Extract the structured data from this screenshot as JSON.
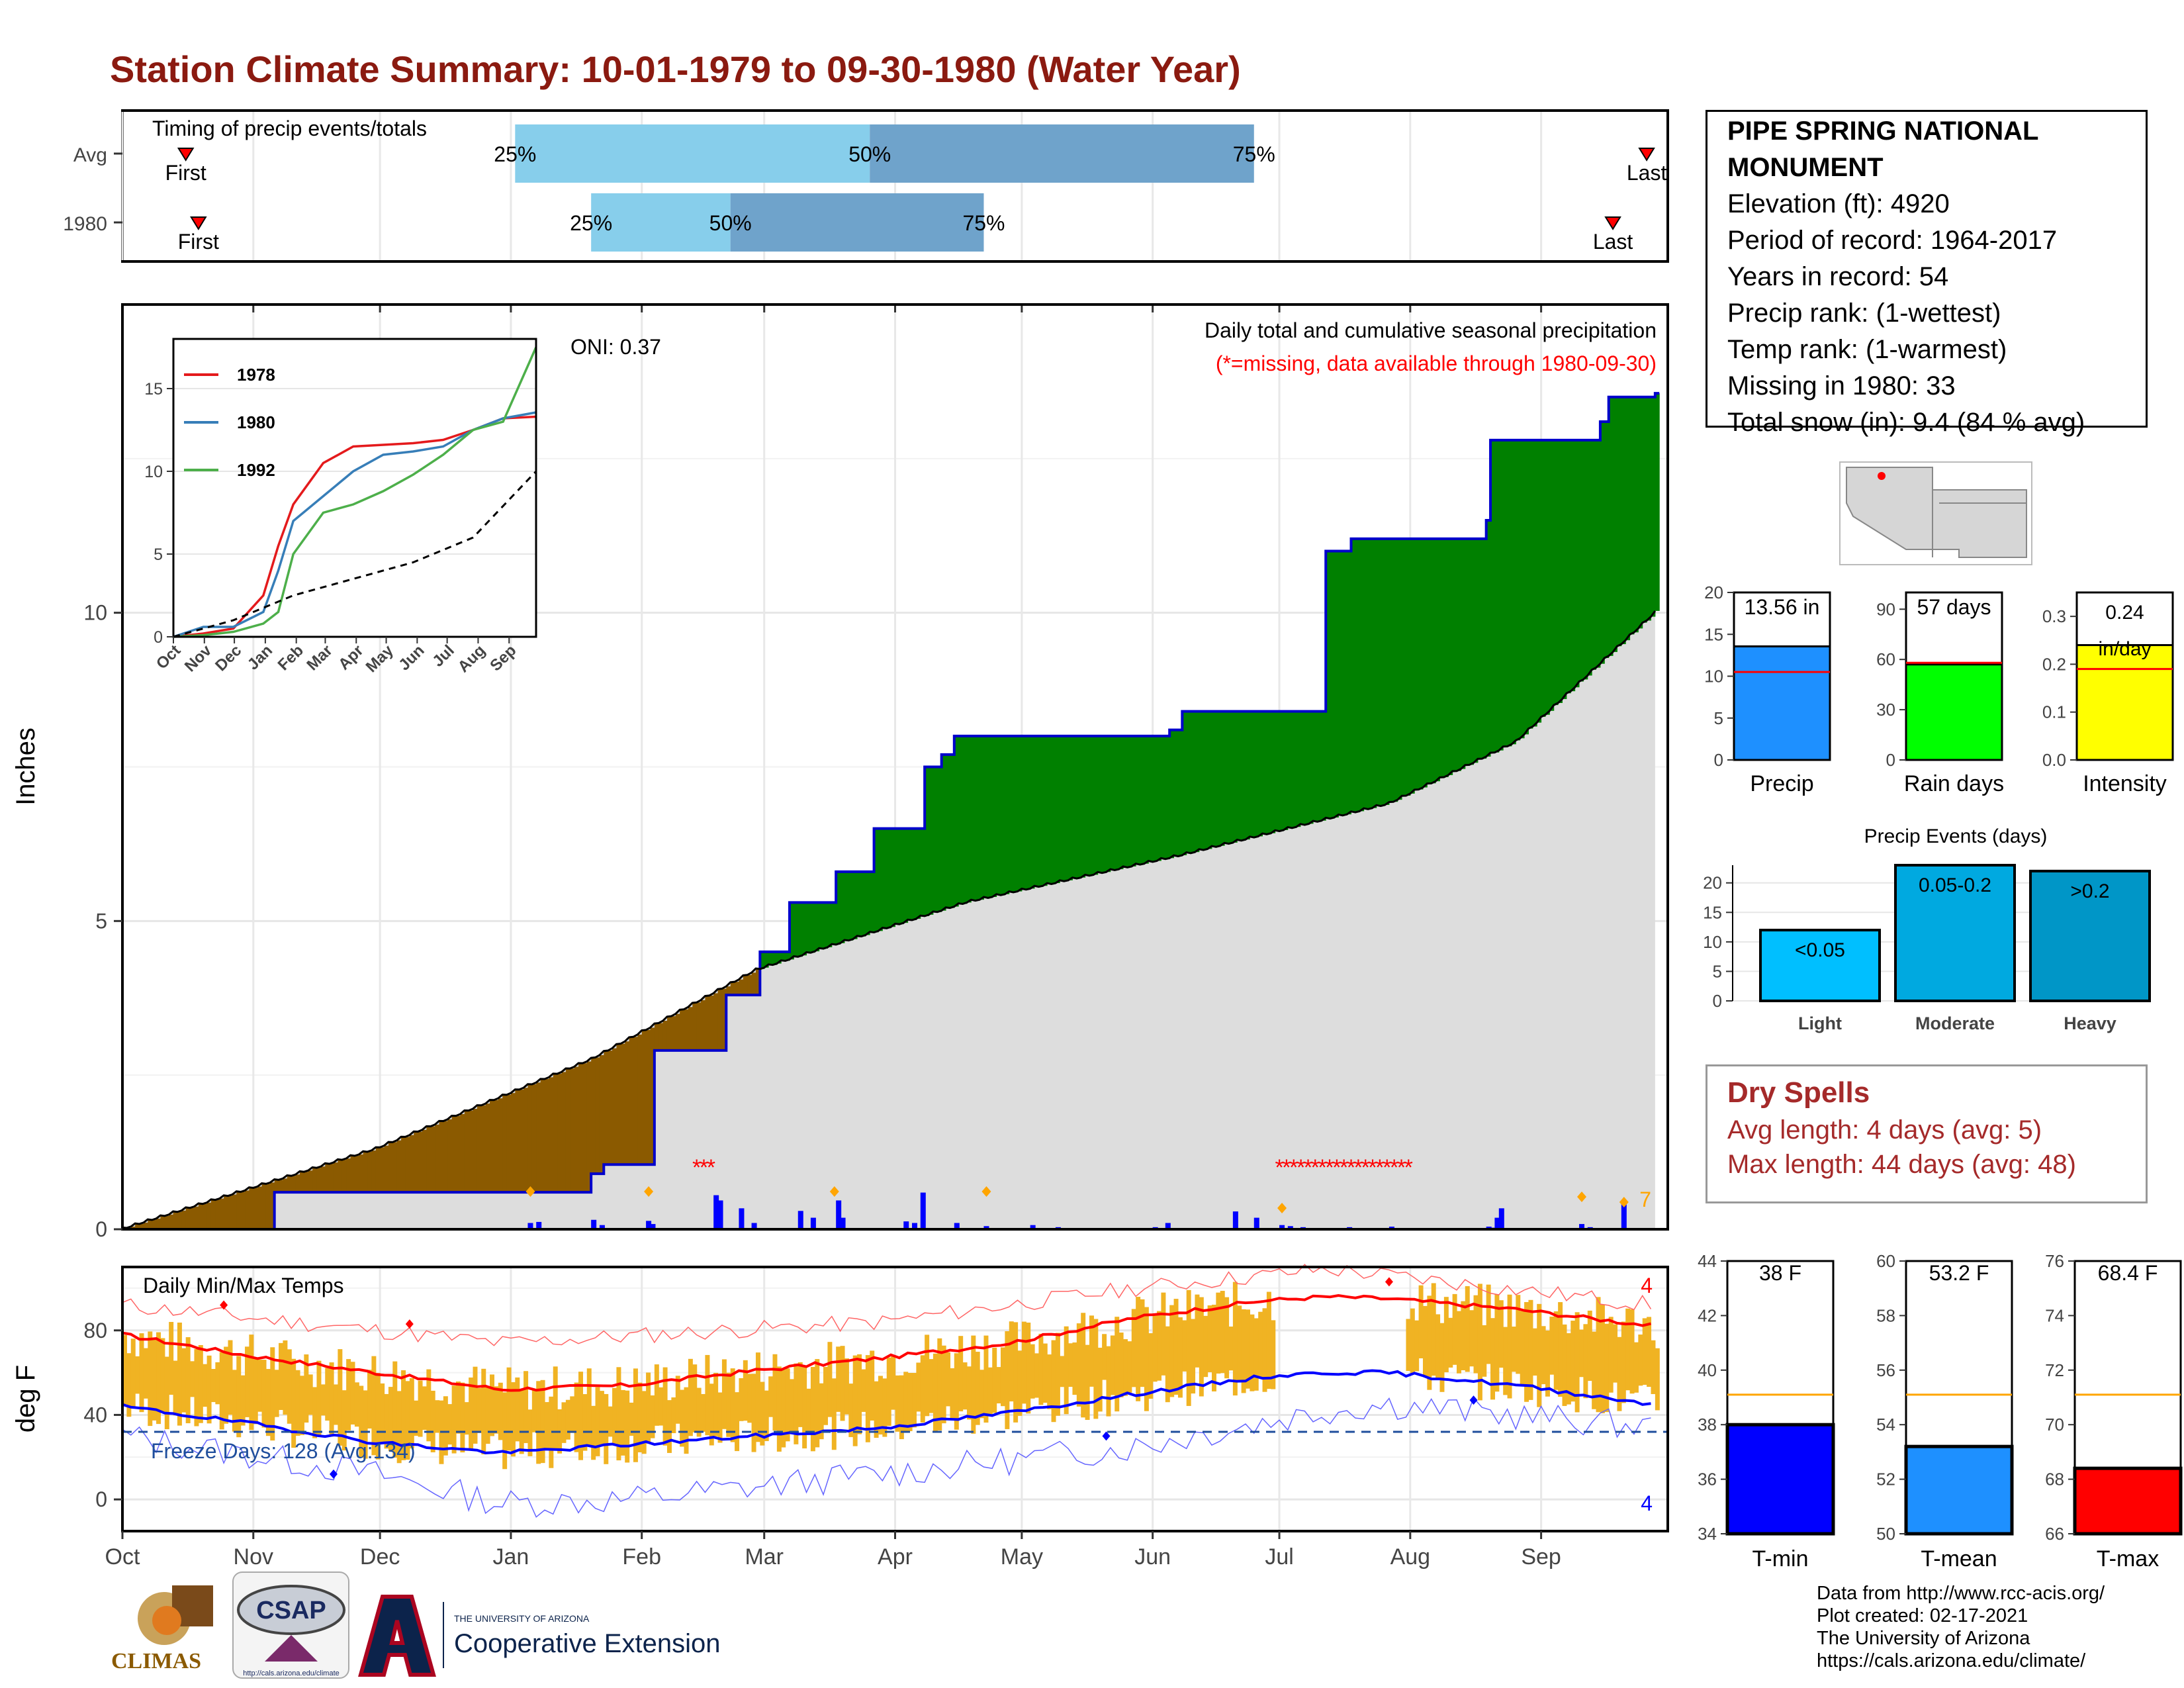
{
  "title": "Station Climate Summary: 10-01-1979 to 09-30-1980 (Water Year)",
  "station": {
    "name": "PIPE SPRING NATIONAL MONUMENT",
    "lines": [
      "Elevation (ft): 4920",
      "Period of record: 1964-2017",
      "Years in record: 54",
      "Precip rank:  (1-wettest)",
      "Temp rank:  (1-warmest)",
      "Missing in 1980: 33",
      "Total snow (in): 9.4 (84 % avg)"
    ]
  },
  "timing": {
    "label": "Timing of precip events/totals",
    "rows": [
      {
        "name": "Avg",
        "first": "First",
        "last": "Last",
        "first_day": 15,
        "last_day": 361,
        "p25_day": 93,
        "p50_day": 177,
        "p75_day": 268,
        "p25": "25%",
        "p50": "50%",
        "p75": "75%"
      },
      {
        "name": "1980",
        "first": "First",
        "last": "Last",
        "first_day": 18,
        "last_day": 353,
        "p25_day": 111,
        "p50_day": 144,
        "p75_day": 204,
        "p25": "25%",
        "p50": "50%",
        "p75": "75%"
      }
    ],
    "colors": {
      "lower": "#87ceeb",
      "upper": "#6fa3cb",
      "marker": "#ff0000"
    }
  },
  "main_panel": {
    "ylabel": "Inches",
    "yticks": [
      "0",
      "5",
      "10"
    ],
    "note1": "Daily total and cumulative seasonal precipitation",
    "note2": "(*=missing, data available through 1980-09-30)",
    "oni": "ONI: 0.37",
    "right_count": "7",
    "colors": {
      "above": "#008000",
      "below": "#8b5a00",
      "avg_fill": "#dddddd",
      "line": "#0000cc"
    }
  },
  "temp_panel": {
    "ylabel": "deg F",
    "label": "Daily Min/Max Temps",
    "yticks": [
      "0",
      "40",
      "80"
    ],
    "freeze": "Freeze Days: 128 (Avg:134)",
    "freeze_line": 32,
    "count_top": "4",
    "count_bottom": "4"
  },
  "months": [
    "Oct",
    "Nov",
    "Dec",
    "Jan",
    "Feb",
    "Mar",
    "Apr",
    "May",
    "Jun",
    "Jul",
    "Aug",
    "Sep"
  ],
  "inset": {
    "series": [
      {
        "name": "1978",
        "color": "#e41a1c"
      },
      {
        "name": "1980",
        "color": "#377eb8"
      },
      {
        "name": "1992",
        "color": "#4daf4a"
      }
    ],
    "yticks": [
      "0",
      "5",
      "10",
      "15"
    ],
    "months": [
      "Oct",
      "Nov",
      "Dec",
      "Jan",
      "Feb",
      "Mar",
      "Apr",
      "May",
      "Jun",
      "Jul",
      "Aug",
      "Sep"
    ]
  },
  "summary_bars": [
    {
      "label": "Precip",
      "value": 13.56,
      "avg": 10.5,
      "display": "13.56 in",
      "ymax": 20,
      "ticks": [
        "0",
        "5",
        "10",
        "15",
        "20"
      ],
      "color": "#1e90ff"
    },
    {
      "label": "Rain days",
      "value": 57,
      "avg": 58,
      "display": "57 days",
      "ymax": 100,
      "ticks": [
        "0",
        "30",
        "60",
        "90"
      ],
      "color": "#00ff00"
    },
    {
      "label": "Intensity",
      "value": 0.24,
      "avg": 0.19,
      "display": "0.24 in/day",
      "ymax": 0.35,
      "ticks": [
        "0.0",
        "0.1",
        "0.2",
        "0.3"
      ],
      "color": "#ffff00"
    }
  ],
  "precip_events": {
    "title": "Precip Events (days)",
    "bars": [
      {
        "label": "Light",
        "range": "<0.05",
        "value": 12,
        "color": "#00bfff"
      },
      {
        "label": "Moderate",
        "range": "0.05-0.2",
        "value": 23,
        "color": "#00a9e0"
      },
      {
        "label": "Heavy",
        "range": ">0.2",
        "value": 22,
        "color": "#0096c7"
      }
    ],
    "ticks": [
      "0",
      "5",
      "10",
      "15",
      "20"
    ]
  },
  "dry_spells": {
    "title": "Dry Spells",
    "avg": "Avg length: 4 days (avg: 5)",
    "max": "Max length: 44 days (avg: 48)"
  },
  "temp_bars": [
    {
      "label": "T-min",
      "value": 38,
      "avg": 39.1,
      "display": "38 F",
      "ymin": 34,
      "ymax": 44,
      "ticks": [
        "34",
        "36",
        "38",
        "40",
        "42",
        "44"
      ],
      "color": "#0000ff"
    },
    {
      "label": "T-mean",
      "value": 53.2,
      "avg": 55.1,
      "display": "53.2 F",
      "ymin": 50,
      "ymax": 60,
      "ticks": [
        "50",
        "52",
        "54",
        "56",
        "58",
        "60"
      ],
      "color": "#1e90ff"
    },
    {
      "label": "T-max",
      "value": 68.4,
      "avg": 71.1,
      "display": "68.4 F",
      "ymin": 66,
      "ymax": 76,
      "ticks": [
        "66",
        "68",
        "70",
        "72",
        "74",
        "76"
      ],
      "color": "#ff0000"
    }
  ],
  "credits": [
    "Data from http://www.rcc-acis.org/",
    "Plot created: 02-17-2021",
    "The University of Arizona",
    "https://cals.arizona.edu/climate/"
  ],
  "logos": {
    "climas": "CLIMAS",
    "csap": "CSAP",
    "csap_url": "http://cals.arizona.edu/climate",
    "ua_small": "THE UNIVERSITY OF ARIZONA",
    "ua_big": "Cooperative Extension"
  },
  "chart_data": [
    {
      "type": "area",
      "title": "Daily total and cumulative seasonal precipitation",
      "ylabel": "Inches",
      "ylim": [
        0,
        15
      ],
      "x_axis": "day of water year (Oct 1 = 0)",
      "series": [
        {
          "name": "1980 cumulative",
          "x": [
            0,
            35,
            36,
            110,
            111,
            113,
            114,
            125,
            126,
            142,
            143,
            150,
            151,
            157,
            158,
            168,
            169,
            177,
            178,
            189,
            190,
            194,
            197,
            248,
            251,
            285,
            291,
            323,
            324,
            350,
            352,
            363
          ],
          "y": [
            0.0,
            0.0,
            0.6,
            0.6,
            0.9,
            0.9,
            1.05,
            1.05,
            2.9,
            2.9,
            3.8,
            3.8,
            4.5,
            4.5,
            5.3,
            5.3,
            5.8,
            5.8,
            6.5,
            6.5,
            7.5,
            7.7,
            8.0,
            8.1,
            8.4,
            11.0,
            11.2,
            11.5,
            12.8,
            13.1,
            13.5,
            13.56
          ]
        },
        {
          "name": "Average cumulative",
          "x": [
            0,
            60,
            111,
            150,
            200,
            250,
            300,
            330,
            363
          ],
          "y": [
            0.0,
            1.3,
            2.75,
            4.2,
            5.3,
            6.05,
            6.9,
            7.9,
            10.0
          ]
        }
      ],
      "daily_precip": {
        "x": [
          28,
          55,
          96,
          98,
          111,
          113,
          124,
          125,
          140,
          141,
          146,
          149,
          160,
          163,
          169,
          170,
          185,
          187,
          189,
          197,
          204,
          215,
          221,
          222,
          244,
          247,
          263,
          268,
          274,
          276,
          277,
          279,
          290,
          300,
          323,
          324,
          325,
          326,
          345,
          347,
          355
        ],
        "y": [
          0.01,
          0.02,
          0.12,
          0.14,
          0.18,
          0.08,
          0.16,
          0.1,
          0.65,
          0.55,
          0.4,
          0.12,
          0.35,
          0.22,
          0.55,
          0.22,
          0.15,
          0.12,
          0.7,
          0.12,
          0.06,
          0.08,
          0.04,
          0.02,
          0.04,
          0.12,
          0.34,
          0.22,
          0.08,
          0.06,
          0.02,
          0.04,
          0.04,
          0.05,
          0.05,
          0.03,
          0.22,
          0.4,
          0.1,
          0.04,
          0.5
        ]
      },
      "missing_days": [
        [
          136,
          140
        ],
        [
          274,
          306
        ]
      ]
    },
    {
      "type": "line",
      "title": "Daily Min/Max Temps",
      "ylabel": "deg F",
      "ylim": [
        -15,
        110
      ],
      "x_axis": "day of water year (Oct 1 = 0)",
      "series": [
        {
          "name": "Avg Tmax",
          "x": [
            0,
            30,
            60,
            90,
            120,
            150,
            180,
            210,
            240,
            270,
            285,
            300,
            330,
            363
          ],
          "y": [
            78,
            68,
            60,
            52,
            54,
            61,
            67,
            74,
            86,
            94,
            96,
            95,
            90,
            82
          ]
        },
        {
          "name": "Avg Tmin",
          "x": [
            0,
            30,
            60,
            90,
            120,
            150,
            180,
            210,
            240,
            270,
            285,
            300,
            330,
            363
          ],
          "y": [
            44,
            36,
            27,
            22,
            26,
            30,
            34,
            41,
            50,
            58,
            60,
            60,
            54,
            45
          ]
        },
        {
          "name": "Record high",
          "x": [
            0,
            60,
            90,
            180,
            240,
            285,
            300,
            363
          ],
          "y": [
            92,
            80,
            74,
            84,
            100,
            109,
            106,
            92
          ]
        },
        {
          "name": "Record low",
          "x": [
            0,
            60,
            90,
            120,
            180,
            240,
            285,
            300,
            363
          ],
          "y": [
            30,
            12,
            -2,
            0,
            12,
            25,
            42,
            45,
            34
          ]
        }
      ],
      "freeze_line": 32,
      "missing_days": [
        [
          273,
          303
        ]
      ]
    },
    {
      "type": "line",
      "title": "",
      "yticks": [
        0,
        5,
        10,
        15
      ],
      "series": [
        {
          "name": "1978",
          "x": [
            0,
            30,
            60,
            90,
            105,
            120,
            150,
            180,
            210,
            240,
            270,
            300,
            330,
            363
          ],
          "y": [
            0.0,
            0.2,
            0.5,
            2.5,
            5.5,
            8.0,
            10.5,
            11.5,
            11.6,
            11.7,
            11.9,
            12.5,
            13.2,
            13.3
          ]
        },
        {
          "name": "1980",
          "x": [
            0,
            30,
            60,
            90,
            105,
            120,
            150,
            180,
            210,
            240,
            270,
            300,
            330,
            363
          ],
          "y": [
            0.0,
            0.6,
            0.6,
            1.5,
            4.0,
            7.0,
            8.5,
            10.0,
            11.0,
            11.2,
            11.5,
            12.5,
            13.2,
            13.56
          ]
        },
        {
          "name": "1992",
          "x": [
            0,
            30,
            60,
            90,
            105,
            120,
            150,
            180,
            210,
            240,
            270,
            300,
            330,
            363
          ],
          "y": [
            0.0,
            0.1,
            0.3,
            0.8,
            1.5,
            5.0,
            7.5,
            8.0,
            8.8,
            9.8,
            11.0,
            12.5,
            13.0,
            17.5
          ]
        },
        {
          "name": "Average",
          "x": [
            0,
            60,
            120,
            180,
            240,
            300,
            363
          ],
          "y": [
            0.0,
            1.0,
            2.5,
            3.5,
            4.5,
            6.0,
            10.0
          ]
        }
      ]
    },
    {
      "type": "bar",
      "title": "Precip Events (days)",
      "categories": [
        "Light",
        "Moderate",
        "Heavy"
      ],
      "values": [
        12,
        23,
        22
      ],
      "ylim": [
        0,
        23
      ]
    },
    {
      "type": "bar",
      "title": "",
      "categories": [
        "Precip",
        "Rain days",
        "Intensity"
      ],
      "values": [
        13.56,
        57,
        0.24
      ]
    },
    {
      "type": "bar",
      "title": "",
      "categories": [
        "T-min",
        "T-mean",
        "T-max"
      ],
      "values": [
        38,
        53.2,
        68.4
      ]
    }
  ]
}
